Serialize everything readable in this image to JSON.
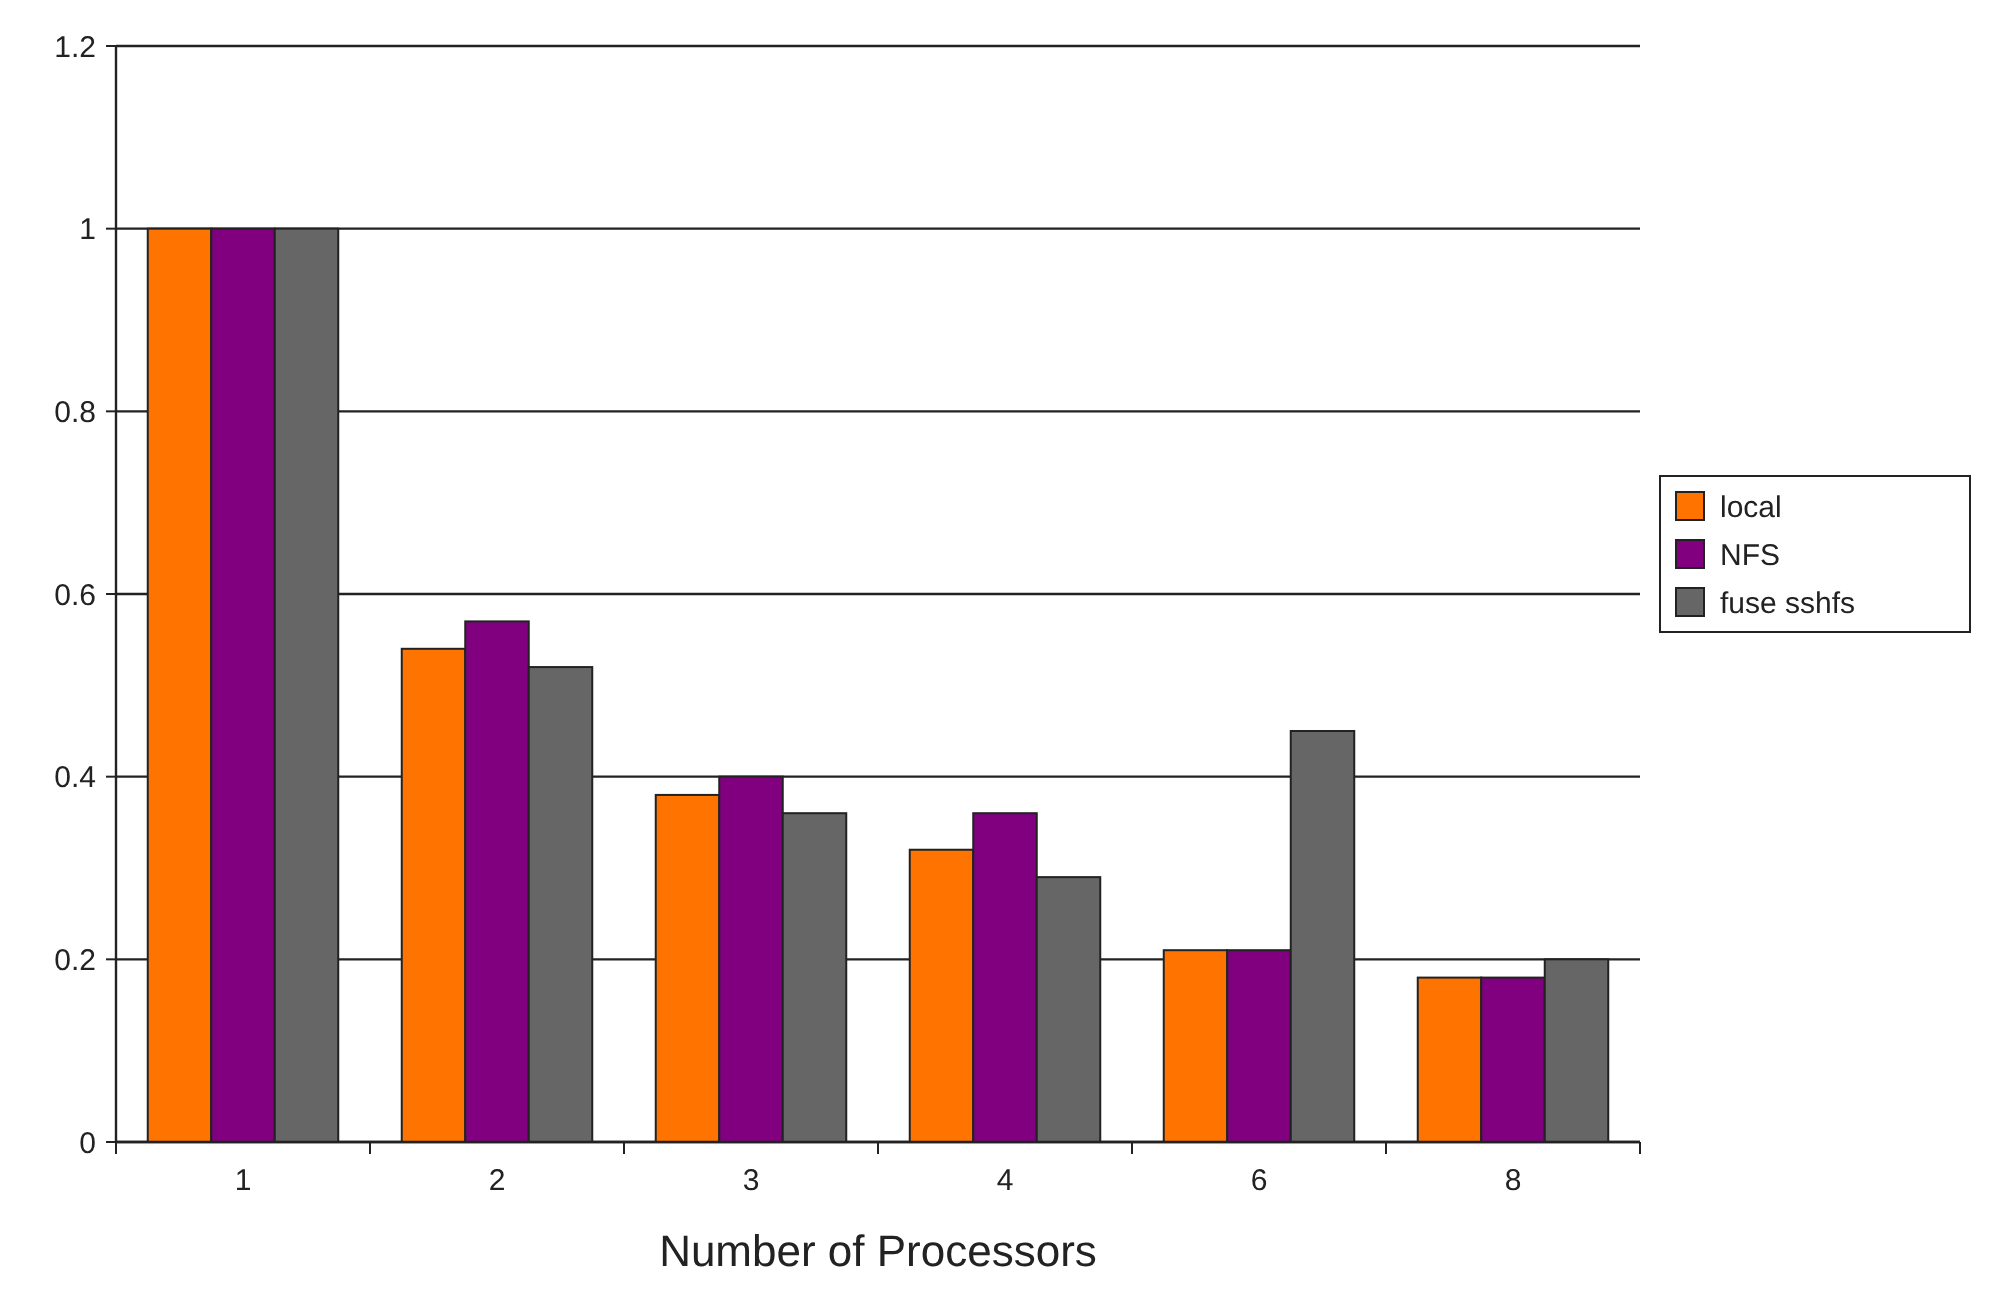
{
  "chart_data": {
    "type": "bar",
    "xlabel": "Number of Processors",
    "categories": [
      "1",
      "2",
      "3",
      "4",
      "6",
      "8"
    ],
    "series": [
      {
        "name": "local",
        "color": "#ff7300",
        "values": [
          1.0,
          0.54,
          0.38,
          0.32,
          0.21,
          0.18
        ]
      },
      {
        "name": "NFS",
        "color": "#800080",
        "values": [
          1.0,
          0.57,
          0.4,
          0.36,
          0.21,
          0.18
        ]
      },
      {
        "name": "fuse sshfs",
        "color": "#666666",
        "values": [
          1.0,
          0.52,
          0.36,
          0.29,
          0.45,
          0.2
        ]
      }
    ],
    "ylim": [
      0,
      1.2
    ],
    "yticks": [
      0,
      0.2,
      0.4,
      0.6,
      0.8,
      1,
      1.2
    ],
    "grid": "y",
    "legend": "right"
  }
}
